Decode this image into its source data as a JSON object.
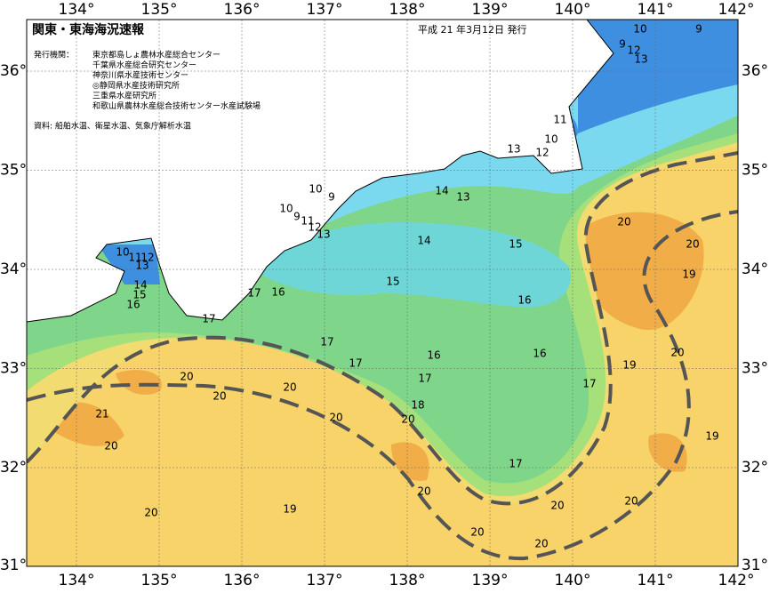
{
  "header": {
    "title": "関東・東海海況速報",
    "issued": "平成 21 年3月12日 発行"
  },
  "agencies": {
    "label": "発行機関：",
    "names": [
      "東京都島しょ農林水産総合センター",
      "千葉県水産総合研究センター",
      "神奈川県水産技術センター",
      "◎静岡県水産技術研究所",
      "三重県水産研究所",
      "和歌山県農林水産総合技術センター水産試験場"
    ]
  },
  "source": "資料: 船舶水温、衛星水温、気象庁解析水温",
  "lon_labels": [
    "134°",
    "135°",
    "136°",
    "137°",
    "138°",
    "139°",
    "140°",
    "141°",
    "142°"
  ],
  "lat_labels": [
    "36°",
    "35°",
    "34°",
    "33°",
    "32°",
    "31°"
  ],
  "contour_labels": [
    "10",
    "9",
    "9",
    "12",
    "13",
    "11",
    "10",
    "12",
    "13",
    "10",
    "9",
    "10",
    "9",
    "11",
    "12",
    "13",
    "14",
    "13",
    "14",
    "15",
    "10",
    "11",
    "12",
    "13",
    "14",
    "15",
    "16",
    "17",
    "16",
    "15",
    "16",
    "17",
    "17",
    "17",
    "16",
    "16",
    "17",
    "17",
    "19",
    "20",
    "20",
    "20",
    "19",
    "20",
    "20",
    "20",
    "20",
    "20",
    "18",
    "21",
    "20",
    "19",
    "17",
    "20",
    "20",
    "20",
    "19",
    "20",
    "20",
    "20"
  ]
}
